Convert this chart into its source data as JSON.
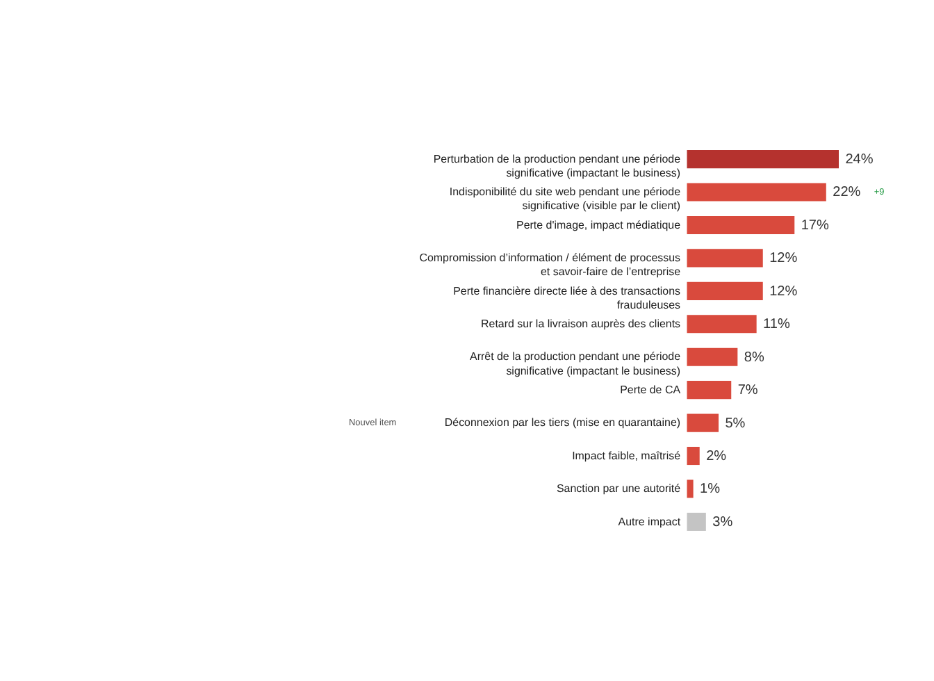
{
  "chart_data": {
    "type": "bar",
    "orientation": "horizontal",
    "categories": [
      "Perturbation de la production pendant une période significative (impactant le business)",
      "Indisponibilité du site web pendant une période significative (visible par le client)",
      "Perte d'image, impact médiatique",
      "Compromission d’information / élément de processus et savoir-faire de l’entreprise",
      "Perte financière directe liée à des transactions frauduleuses",
      "Retard sur la livraison auprès des clients",
      "Arrêt de la production pendant une période significative (impactant le business)",
      "Perte de CA",
      "Déconnexion par les tiers (mise en quarantaine)",
      "Impact faible, maîtrisé",
      "Sanction par une autorité",
      "Autre impact"
    ],
    "values": [
      24,
      22,
      17,
      12,
      12,
      11,
      8,
      7,
      5,
      2,
      1,
      3
    ],
    "colors": [
      "#b5322e",
      "#d94a3d",
      "#d94a3d",
      "#d94a3d",
      "#d94a3d",
      "#d94a3d",
      "#d94a3d",
      "#d94a3d",
      "#d94a3d",
      "#d94a3d",
      "#d94a3d",
      "#c4c4c4"
    ],
    "value_labels": [
      "24%",
      "22%",
      "17%",
      "12%",
      "12%",
      "11%",
      "8%",
      "7%",
      "5%",
      "2%",
      "1%",
      "3%"
    ],
    "annotations": [
      "+9",
      "Nouvel item"
    ]
  }
}
